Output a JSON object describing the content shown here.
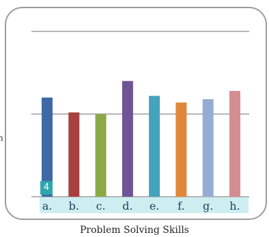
{
  "chart_data": {
    "type": "bar",
    "title": "",
    "xlabel": "Problem Solving Skills",
    "ylabel": "",
    "categories": [
      "a.",
      "b.",
      "c.",
      "d.",
      "e.",
      "f.",
      "g.",
      "h."
    ],
    "values": [
      60,
      51,
      50,
      70,
      61,
      57,
      59,
      64
    ],
    "ylim": [
      0,
      100
    ],
    "yticks": [
      0,
      50,
      100
    ],
    "grid": true,
    "legend": "none",
    "colors": [
      "#3f68a7",
      "#a84040",
      "#8aaa47",
      "#6e5596",
      "#45a2bd",
      "#e0873a",
      "#95add4",
      "#d48e92"
    ],
    "label_band_color": "#cdeef1"
  },
  "badge": {
    "text": "4",
    "color": "#2fa6ad"
  },
  "left_label_fragment": "n"
}
